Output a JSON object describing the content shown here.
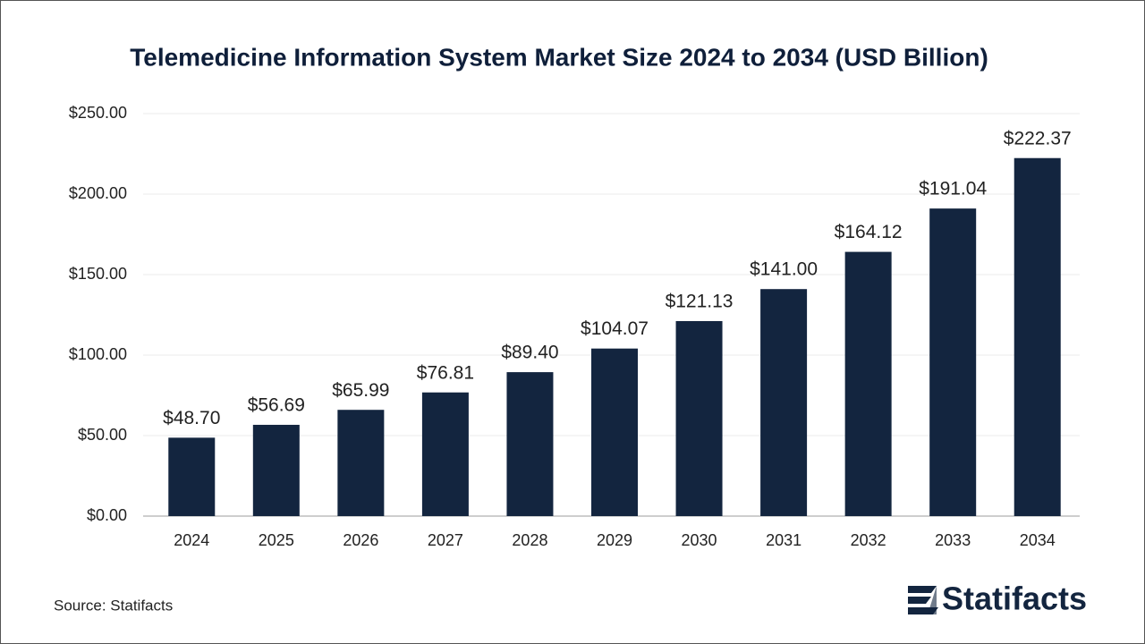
{
  "chart_data": {
    "type": "bar",
    "title": "Telemedicine Information System Market Size 2024 to 2034 (USD Billion)",
    "categories": [
      "2024",
      "2025",
      "2026",
      "2027",
      "2028",
      "2029",
      "2030",
      "2031",
      "2032",
      "2033",
      "2034"
    ],
    "values": [
      48.7,
      56.69,
      65.99,
      76.81,
      89.4,
      104.07,
      121.13,
      141.0,
      164.12,
      191.04,
      222.37
    ],
    "value_labels": [
      "$48.70",
      "$56.69",
      "$65.99",
      "$76.81",
      "$89.40",
      "$104.07",
      "$121.13",
      "$141.00",
      "$164.12",
      "$191.04",
      "$222.37"
    ],
    "color": "#13253f",
    "ylim": [
      0,
      250
    ],
    "yticks": [
      {
        "value": 0,
        "label": "$0.00"
      },
      {
        "value": 50,
        "label": "$50.00"
      },
      {
        "value": 100,
        "label": "$100.00"
      },
      {
        "value": 150,
        "label": "$150.00"
      },
      {
        "value": 200,
        "label": "$200.00"
      },
      {
        "value": 250,
        "label": "$250.00"
      }
    ],
    "grid": true,
    "source": "Source: Statifacts",
    "brand": "Statifacts"
  }
}
